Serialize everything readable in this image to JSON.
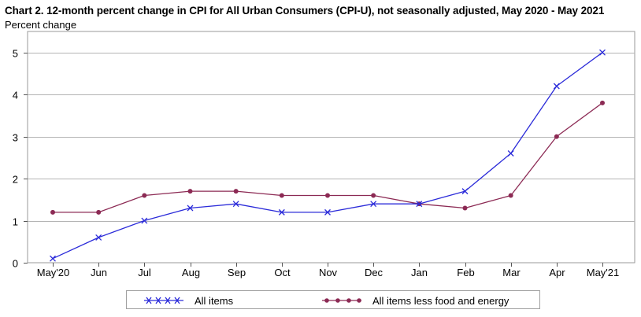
{
  "chart_data": {
    "type": "line",
    "title": "Chart 2. 12-month percent change in CPI for All Urban Consumers (CPI-U), not seasonally adjusted, May 2020 - May 2021",
    "ylabel": "Percent change",
    "xlabel": "",
    "categories": [
      "May'20",
      "Jun",
      "Jul",
      "Aug",
      "Sep",
      "Oct",
      "Nov",
      "Dec",
      "Jan",
      "Feb",
      "Mar",
      "Apr",
      "May'21"
    ],
    "ylim": [
      0,
      5.5
    ],
    "yticks": [
      0,
      1,
      2,
      3,
      4,
      5
    ],
    "grid": true,
    "legend_position": "bottom",
    "series": [
      {
        "name": "All items",
        "color": "#2b2bd9",
        "marker": "x",
        "values": [
          0.1,
          0.6,
          1.0,
          1.3,
          1.4,
          1.2,
          1.2,
          1.4,
          1.4,
          1.7,
          2.6,
          4.2,
          5.0
        ]
      },
      {
        "name": "All items less food and energy",
        "color": "#8c2a54",
        "marker": "dot",
        "values": [
          1.2,
          1.2,
          1.6,
          1.7,
          1.7,
          1.6,
          1.6,
          1.6,
          1.4,
          1.3,
          1.6,
          3.0,
          3.8
        ]
      }
    ]
  }
}
